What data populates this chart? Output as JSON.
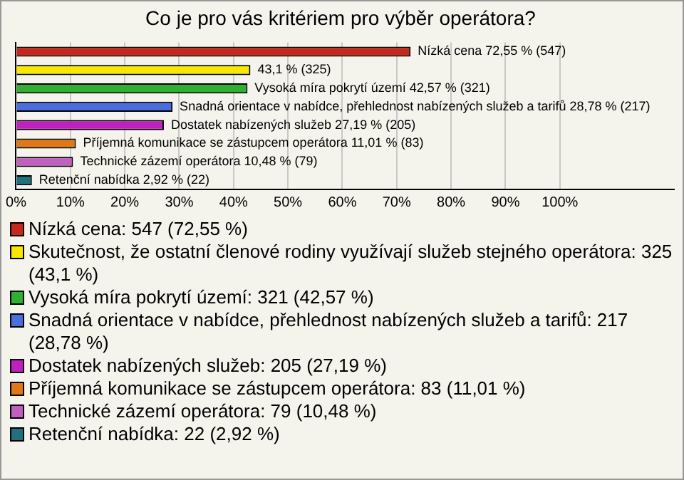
{
  "chart_data": {
    "type": "bar",
    "orientation": "horizontal",
    "title": "Co je pro vás kritériem pro výběr operátora?",
    "categories": [
      null,
      null,
      null,
      null,
      null,
      null,
      null,
      null
    ],
    "series": [
      {
        "name": "Nízká cena: 547 (72,55 %)",
        "color": "#c8281c",
        "values": [
          72.55,
          null,
          null,
          null,
          null,
          null,
          null,
          null
        ],
        "value_labels": [
          "Nízká cena 72,55 % (547)",
          null,
          null,
          null,
          null,
          null,
          null,
          null
        ]
      },
      {
        "name": "Skutečnost, že ostatní členové rodiny využívají služeb stejného operátora: 325 (43,1 %)",
        "color": "#f8e800",
        "values": [
          null,
          43.1,
          null,
          null,
          null,
          null,
          null,
          null
        ],
        "value_labels": [
          null,
          "43,1 % (325)",
          null,
          null,
          null,
          null,
          null,
          null
        ]
      },
      {
        "name": "Vysoká míra pokrytí území: 321 (42,57 %)",
        "color": "#30b030",
        "values": [
          null,
          null,
          42.57,
          null,
          null,
          null,
          null,
          null
        ],
        "value_labels": [
          null,
          null,
          "Vysoká míra pokrytí území 42,57 % (321)",
          null,
          null,
          null,
          null,
          null
        ]
      },
      {
        "name": "Snadná orientace v nabídce, přehlednost nabízených služeb a tarifů: 217 (28,78 %)",
        "color": "#4a6ee0",
        "values": [
          null,
          null,
          null,
          28.78,
          null,
          null,
          null,
          null
        ],
        "value_labels": [
          null,
          null,
          null,
          "Snadná orientace v nabídce, přehlednost nabízených služeb a tarifů 28,78 % (217)",
          null,
          null,
          null,
          null
        ]
      },
      {
        "name": "Dostatek nabízených služeb: 205 (27,19 %)",
        "color": "#c020c0",
        "values": [
          null,
          null,
          null,
          null,
          27.19,
          null,
          null,
          null
        ],
        "value_labels": [
          null,
          null,
          null,
          null,
          "Dostatek nabízených služeb 27,19 % (205)",
          null,
          null,
          null
        ]
      },
      {
        "name": "Příjemná komunikace se zástupcem operátora: 83 (11,01 %)",
        "color": "#e07818",
        "values": [
          null,
          null,
          null,
          null,
          null,
          11.01,
          null,
          null
        ],
        "value_labels": [
          null,
          null,
          null,
          null,
          null,
          "Příjemná komunikace se zástupcem operátora 11,01 % (83)",
          null,
          null
        ]
      },
      {
        "name": "Technické zázemí operátora: 79 (10,48 %)",
        "color": "#c060c0",
        "values": [
          null,
          null,
          null,
          null,
          null,
          null,
          10.48,
          null
        ],
        "value_labels": [
          null,
          null,
          null,
          null,
          null,
          null,
          "Technické zázemí operátora 10,48 % (79)",
          null
        ]
      },
      {
        "name": "Retenční nabídka: 22 (2,92 %)",
        "color": "#207080",
        "values": [
          null,
          null,
          null,
          null,
          null,
          null,
          null,
          2.92
        ],
        "value_labels": [
          null,
          null,
          null,
          null,
          null,
          null,
          null,
          "Retenční nabídka 2,92 % (22)"
        ]
      }
    ],
    "xlim": [
      0,
      121
    ],
    "xticks": [
      {
        "value": 0,
        "label": "0%"
      },
      {
        "value": 10,
        "label": "10%"
      },
      {
        "value": 20,
        "label": "20%"
      },
      {
        "value": 30,
        "label": "30%"
      },
      {
        "value": 40,
        "label": "40%"
      },
      {
        "value": 50,
        "label": "50%"
      },
      {
        "value": 60,
        "label": "60%"
      },
      {
        "value": 70,
        "label": "70%"
      },
      {
        "value": 80,
        "label": "80%"
      },
      {
        "value": 90,
        "label": "90%"
      },
      {
        "value": 100,
        "label": "100%"
      }
    ],
    "grid": "x",
    "tick_labels": "x",
    "legend": "bottom"
  }
}
